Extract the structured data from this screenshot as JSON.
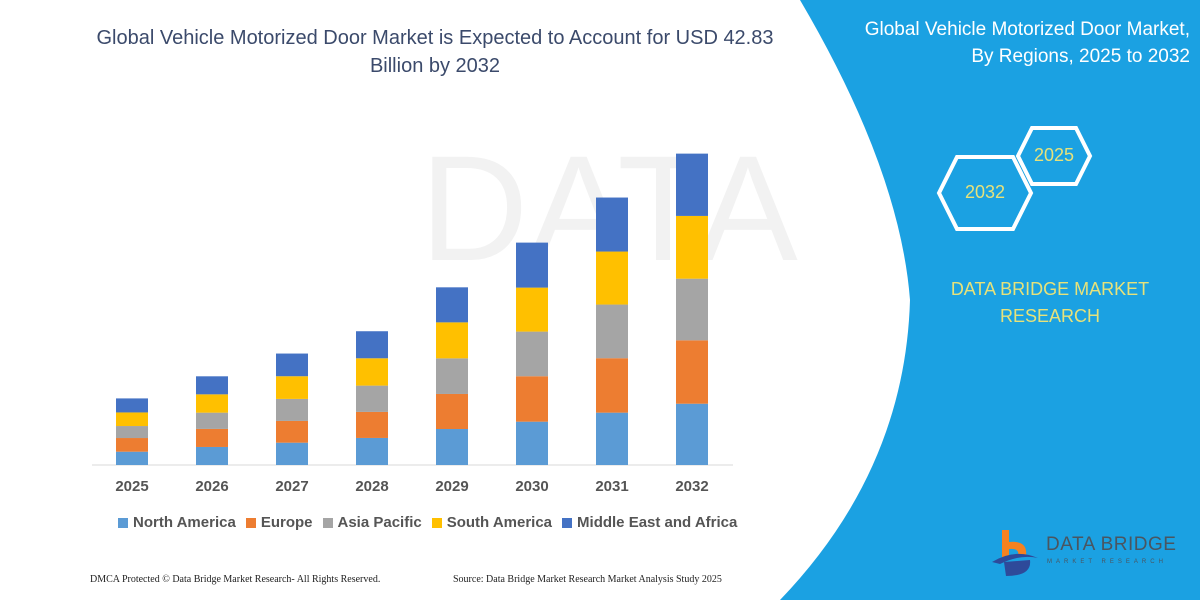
{
  "header": {
    "title": "Global Vehicle Motorized Door Market is Expected to Account for USD 42.83 Billion by 2032"
  },
  "side_panel": {
    "title": "Global Vehicle Motorized Door Market, By Regions, 2025 to 2032",
    "hex_start": "2025",
    "hex_end": "2032",
    "brand": "DATA BRIDGE MARKET RESEARCH",
    "color": "#1ba1e2"
  },
  "logo": {
    "name": "DATA BRIDGE",
    "tagline": "MARKET RESEARCH"
  },
  "footer": {
    "copyright": "DMCA Protected © Data Bridge Market Research-  All Rights Reserved.",
    "source": "Source: Data Bridge Market Research  Market Analysis Study 2025"
  },
  "chart_data": {
    "type": "bar",
    "stacked": true,
    "title": "Global Vehicle Motorized Door Market is Expected to Account for USD 42.83 Billion by 2032",
    "xlabel": "",
    "ylabel": "",
    "grid": false,
    "legend_position": "bottom",
    "categories": [
      "2025",
      "2026",
      "2027",
      "2028",
      "2029",
      "2030",
      "2031",
      "2032"
    ],
    "series": [
      {
        "name": "North America",
        "color": "#5b9bd5",
        "values": [
          1.83,
          2.48,
          3.07,
          3.72,
          4.95,
          5.96,
          7.2,
          8.43
        ]
      },
      {
        "name": "Europe",
        "color": "#ed7d31",
        "values": [
          1.88,
          2.48,
          2.99,
          3.58,
          4.82,
          6.25,
          7.49,
          8.72
        ]
      },
      {
        "name": "Asia Pacific",
        "color": "#a5a5a5",
        "values": [
          1.65,
          2.24,
          3.03,
          3.62,
          4.9,
          6.14,
          7.38,
          8.48
        ]
      },
      {
        "name": "South America",
        "color": "#ffc000",
        "values": [
          1.87,
          2.52,
          3.12,
          3.76,
          4.95,
          6.05,
          7.29,
          8.63
        ]
      },
      {
        "name": "Middle East and Africa",
        "color": "#4472c4",
        "values": [
          1.93,
          2.48,
          3.12,
          3.72,
          4.82,
          6.19,
          7.43,
          8.57
        ]
      }
    ]
  }
}
